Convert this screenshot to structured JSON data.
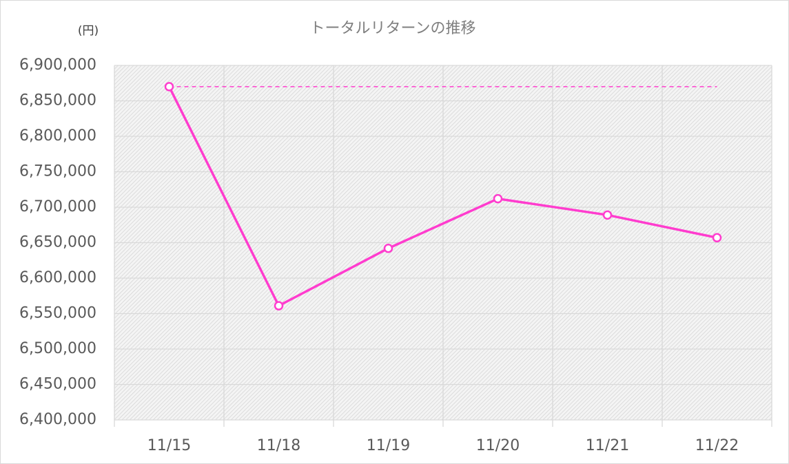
{
  "chart_data": {
    "type": "line",
    "title": "トータルリターンの推移",
    "ylabel": "(円)",
    "categories": [
      "11/15",
      "11/18",
      "11/19",
      "11/20",
      "11/21",
      "11/22"
    ],
    "series": [
      {
        "color": "#ff3cce",
        "markers": true,
        "values": [
          6870000,
          6561000,
          6642000,
          6712000,
          6689000,
          6657000
        ]
      },
      {
        "color": "#ff3cce",
        "line_style": "dashed",
        "values": [
          6870000,
          6870000,
          6870000,
          6870000,
          6870000,
          6870000
        ]
      }
    ],
    "ylim": [
      6400000,
      6900000
    ],
    "yticks": [
      {
        "value": 6400000,
        "label": "6,400,000"
      },
      {
        "value": 6450000,
        "label": "6,450,000"
      },
      {
        "value": 6500000,
        "label": "6,500,000"
      },
      {
        "value": 6550000,
        "label": "6,550,000"
      },
      {
        "value": 6600000,
        "label": "6,600,000"
      },
      {
        "value": 6650000,
        "label": "6,650,000"
      },
      {
        "value": 6700000,
        "label": "6,700,000"
      },
      {
        "value": 6750000,
        "label": "6,750,000"
      },
      {
        "value": 6800000,
        "label": "6,800,000"
      },
      {
        "value": 6850000,
        "label": "6,850,000"
      },
      {
        "value": 6900000,
        "label": "6,900,000"
      }
    ],
    "grid": true
  }
}
